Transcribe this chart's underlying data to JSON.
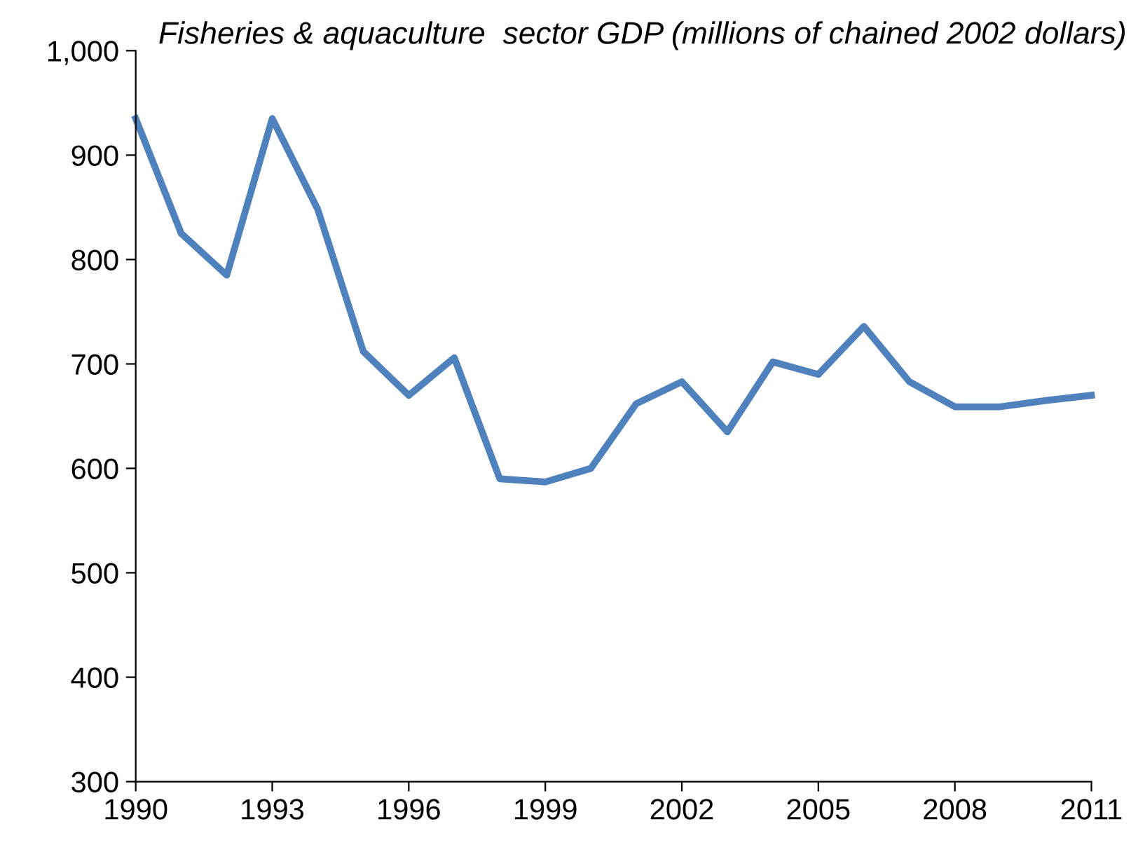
{
  "chart_data": {
    "type": "line",
    "title": "Fisheries & aquaculture  sector GDP (millions of chained 2002 dollars)",
    "x": [
      1990,
      1991,
      1992,
      1993,
      1994,
      1995,
      1996,
      1997,
      1998,
      1999,
      2000,
      2001,
      2002,
      2003,
      2004,
      2005,
      2006,
      2007,
      2008,
      2009,
      2010,
      2011
    ],
    "series": [
      {
        "color": "#4f81bd",
        "values": [
          935,
          825,
          785,
          935,
          848,
          712,
          670,
          706,
          590,
          587,
          600,
          662,
          683,
          635,
          702,
          690,
          736,
          683,
          659,
          659,
          665,
          670
        ]
      }
    ],
    "xlim": [
      1990,
      2011
    ],
    "xticks": [
      1990,
      1993,
      1996,
      1999,
      2002,
      2005,
      2008,
      2011
    ],
    "ylim": [
      300,
      1000
    ],
    "yticks": [
      300,
      400,
      500,
      600,
      700,
      800,
      900,
      {
        "value": 1000,
        "label": "1,000"
      }
    ],
    "grid": false,
    "legend": false,
    "marker": "none",
    "line_style": "solid"
  }
}
